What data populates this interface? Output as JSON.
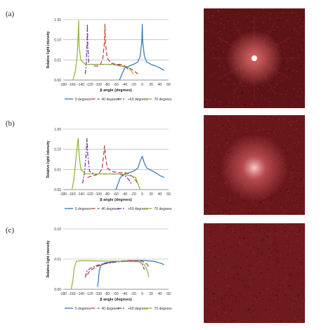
{
  "figure": {
    "panel_labels": [
      "(a)",
      "(b)",
      "(c)"
    ]
  },
  "chart_data": [
    {
      "type": "line",
      "ylabel": "Relative light intensity",
      "xlabel": "β angle (degrees)",
      "xlim": [
        -180,
        60
      ],
      "ylim_log": [
        0.001,
        1
      ],
      "yticks": [
        {
          "v": 1,
          "label": "1.00"
        },
        {
          "v": 0.1,
          "label": "0.10"
        },
        {
          "v": 0.01,
          "label": "0.01"
        },
        {
          "v": 0.001,
          "label": "0.00"
        }
      ],
      "xticks": [
        -180,
        -160,
        -140,
        -120,
        -100,
        -80,
        -60,
        -40,
        -20,
        0,
        20,
        40,
        60
      ],
      "grid": "horizontal",
      "legend": "bottom",
      "series": [
        {
          "name": "5 degrees",
          "color": "#2e75b6",
          "dash": "solid",
          "points": [
            [
              -52,
              0.001
            ],
            [
              -40,
              0.004
            ],
            [
              -30,
              0.005
            ],
            [
              -20,
              0.006
            ],
            [
              -10,
              0.008
            ],
            [
              -5,
              0.015
            ],
            [
              -1,
              0.08
            ],
            [
              0,
              0.6
            ],
            [
              1,
              0.08
            ],
            [
              5,
              0.015
            ],
            [
              10,
              0.008
            ],
            [
              20,
              0.006
            ],
            [
              30,
              0.005
            ],
            [
              40,
              0.004
            ],
            [
              50,
              0.003
            ]
          ]
        },
        {
          "name": "40 degrees",
          "color": "#c0392b",
          "dash": "6,3",
          "points": [
            [
              -110,
              0.005
            ],
            [
              -100,
              0.005
            ],
            [
              -95,
              0.006
            ],
            [
              -90,
              0.012
            ],
            [
              -86,
              0.08
            ],
            [
              -85,
              0.6
            ],
            [
              -84,
              0.08
            ],
            [
              -80,
              0.012
            ],
            [
              -70,
              0.007
            ],
            [
              -60,
              0.006
            ],
            [
              -50,
              0.006
            ],
            [
              -40,
              0.005
            ],
            [
              -30,
              0.004
            ],
            [
              -20,
              0.003
            ],
            [
              -10,
              0.002
            ]
          ]
        },
        {
          "name": "+60 degrees",
          "color": "#7030a0",
          "dash": "6,2,2,2",
          "points": [
            [
              -130,
              0.002
            ],
            [
              -128,
              0.005
            ],
            [
              -126,
              0.05
            ],
            [
              -125,
              0.6
            ],
            [
              -124,
              0.05
            ],
            [
              -122,
              0.006
            ],
            [
              -110,
              0.006
            ],
            [
              -90,
              0.006
            ],
            [
              -70,
              0.006
            ],
            [
              -60,
              0.006
            ],
            [
              -45,
              0.005
            ],
            [
              -35,
              0.004
            ],
            [
              -30,
              0.003
            ]
          ]
        },
        {
          "name": "70 degrees",
          "color": "#8db33a",
          "dash": "solid",
          "points": [
            [
              -158,
              0.001
            ],
            [
              -152,
              0.003
            ],
            [
              -148,
              0.02
            ],
            [
              -146,
              0.2
            ],
            [
              -145,
              0.9
            ],
            [
              -144,
              0.05
            ],
            [
              -140,
              0.01
            ],
            [
              -130,
              0.006
            ],
            [
              -110,
              0.006
            ],
            [
              -90,
              0.006
            ],
            [
              -70,
              0.006
            ],
            [
              -50,
              0.005
            ],
            [
              -30,
              0.004
            ],
            [
              -20,
              0.002
            ]
          ]
        }
      ]
    },
    {
      "type": "line",
      "ylabel": "Relative light intensity",
      "xlabel": "β angle (degrees)",
      "xlim": [
        -180,
        60
      ],
      "ylim_log": [
        0.001,
        1
      ],
      "yticks": [
        {
          "v": 1,
          "label": "1.00"
        },
        {
          "v": 0.1,
          "label": "0.10"
        },
        {
          "v": 0.01,
          "label": "0.01"
        },
        {
          "v": 0.001,
          "label": "0.00"
        }
      ],
      "xticks": [
        -180,
        -160,
        -140,
        -120,
        -100,
        -80,
        -60,
        -40,
        -20,
        0,
        20,
        40,
        60
      ],
      "grid": "horizontal",
      "legend": "bottom",
      "series": [
        {
          "name": "5 degrees",
          "color": "#2e75b6",
          "dash": "solid",
          "points": [
            [
              -60,
              0.001
            ],
            [
              -50,
              0.004
            ],
            [
              -40,
              0.006
            ],
            [
              -30,
              0.007
            ],
            [
              -20,
              0.008
            ],
            [
              -10,
              0.012
            ],
            [
              -5,
              0.025
            ],
            [
              0,
              0.045
            ],
            [
              5,
              0.02
            ],
            [
              10,
              0.012
            ],
            [
              20,
              0.009
            ],
            [
              30,
              0.007
            ],
            [
              40,
              0.005
            ],
            [
              50,
              0.004
            ]
          ]
        },
        {
          "name": "40 degrees",
          "color": "#c0392b",
          "dash": "6,3",
          "points": [
            [
              -125,
              0.004
            ],
            [
              -110,
              0.005
            ],
            [
              -100,
              0.006
            ],
            [
              -92,
              0.01
            ],
            [
              -88,
              0.05
            ],
            [
              -86,
              0.15
            ],
            [
              -84,
              0.05
            ],
            [
              -80,
              0.012
            ],
            [
              -70,
              0.008
            ],
            [
              -55,
              0.007
            ],
            [
              -40,
              0.007
            ],
            [
              -30,
              0.006
            ],
            [
              -20,
              0.004
            ],
            [
              -10,
              0.002
            ]
          ]
        },
        {
          "name": "+60 degrees",
          "color": "#7030a0",
          "dash": "6,2,2,2",
          "points": [
            [
              -136,
              0.002
            ],
            [
              -132,
              0.006
            ],
            [
              -128,
              0.05
            ],
            [
              -126,
              0.35
            ],
            [
              -124,
              0.05
            ],
            [
              -120,
              0.008
            ],
            [
              -110,
              0.006
            ],
            [
              -90,
              0.006
            ],
            [
              -70,
              0.006
            ],
            [
              -55,
              0.006
            ],
            [
              -40,
              0.005
            ],
            [
              -30,
              0.003
            ],
            [
              -25,
              0.002
            ]
          ]
        },
        {
          "name": "70 degrees",
          "color": "#8db33a",
          "dash": "solid",
          "points": [
            [
              -160,
              0.001
            ],
            [
              -156,
              0.003
            ],
            [
              -152,
              0.02
            ],
            [
              -148,
              0.15
            ],
            [
              -146,
              0.35
            ],
            [
              -144,
              0.06
            ],
            [
              -140,
              0.01
            ],
            [
              -130,
              0.006
            ],
            [
              -110,
              0.006
            ],
            [
              -90,
              0.006
            ],
            [
              -70,
              0.006
            ],
            [
              -50,
              0.006
            ],
            [
              -30,
              0.005
            ],
            [
              -15,
              0.004
            ],
            [
              -5,
              0.001
            ]
          ]
        }
      ]
    },
    {
      "type": "line",
      "ylabel": "Relative light intensity",
      "xlabel": "β angle (degrees)",
      "xlim": [
        -180,
        60
      ],
      "ylim_log": [
        0.001,
        0.1
      ],
      "yticks": [
        {
          "v": 0.1,
          "label": "0.10"
        },
        {
          "v": 0.01,
          "label": "0.01"
        },
        {
          "v": 0.001,
          "label": "0.00"
        }
      ],
      "xticks": [
        -180,
        -160,
        -140,
        -120,
        -100,
        -80,
        -60,
        -40,
        -20,
        0,
        20,
        40,
        60
      ],
      "grid": "horizontal",
      "legend": "bottom",
      "series": [
        {
          "name": "5 degrees",
          "color": "#2e75b6",
          "dash": "solid",
          "points": [
            [
              -102,
              0.0012
            ],
            [
              -100,
              0.002
            ],
            [
              -98,
              0.004
            ],
            [
              -95,
              0.006
            ],
            [
              -85,
              0.0075
            ],
            [
              -70,
              0.008
            ],
            [
              -50,
              0.0085
            ],
            [
              -30,
              0.0088
            ],
            [
              -10,
              0.009
            ],
            [
              0,
              0.009
            ],
            [
              10,
              0.0088
            ],
            [
              25,
              0.0085
            ],
            [
              40,
              0.0075
            ],
            [
              50,
              0.0065
            ]
          ]
        },
        {
          "name": "40 degrees",
          "color": "#c0392b",
          "dash": "6,3",
          "points": [
            [
              -125,
              0.003
            ],
            [
              -120,
              0.004
            ],
            [
              -110,
              0.005
            ],
            [
              -100,
              0.006
            ],
            [
              -85,
              0.007
            ],
            [
              -70,
              0.0078
            ],
            [
              -55,
              0.0085
            ],
            [
              -40,
              0.0088
            ],
            [
              -25,
              0.009
            ],
            [
              -10,
              0.0088
            ],
            [
              0,
              0.0085
            ],
            [
              10,
              0.007
            ],
            [
              15,
              0.0055
            ]
          ]
        },
        {
          "name": "+60 degrees",
          "color": "#7030a0",
          "dash": "6,2,2,2",
          "points": [
            [
              -130,
              0.0025
            ],
            [
              -126,
              0.004
            ],
            [
              -118,
              0.005
            ],
            [
              -105,
              0.006
            ],
            [
              -90,
              0.007
            ],
            [
              -75,
              0.0075
            ],
            [
              -60,
              0.008
            ],
            [
              -45,
              0.0083
            ],
            [
              -30,
              0.0085
            ],
            [
              -15,
              0.0085
            ],
            [
              -5,
              0.008
            ],
            [
              0,
              0.0065
            ],
            [
              5,
              0.0045
            ]
          ]
        },
        {
          "name": "70 degrees",
          "color": "#8db33a",
          "dash": "solid",
          "points": [
            [
              -162,
              0.001
            ],
            [
              -158,
              0.002
            ],
            [
              -155,
              0.005
            ],
            [
              -150,
              0.0085
            ],
            [
              -140,
              0.0088
            ],
            [
              -120,
              0.0088
            ],
            [
              -100,
              0.0087
            ],
            [
              -80,
              0.0086
            ],
            [
              -60,
              0.0085
            ],
            [
              -40,
              0.0084
            ],
            [
              -20,
              0.0083
            ],
            [
              -5,
              0.008
            ],
            [
              5,
              0.0065
            ],
            [
              12,
              0.004
            ],
            [
              15,
              0.0025
            ]
          ]
        }
      ]
    }
  ],
  "images": [
    {
      "type": "laser-speckle",
      "background": "#5e1417",
      "spot": "bright"
    },
    {
      "type": "laser-speckle",
      "background": "#6a171b",
      "spot": "diffuse"
    },
    {
      "type": "laser-speckle",
      "background": "#6f1a1e",
      "spot": "none"
    }
  ]
}
